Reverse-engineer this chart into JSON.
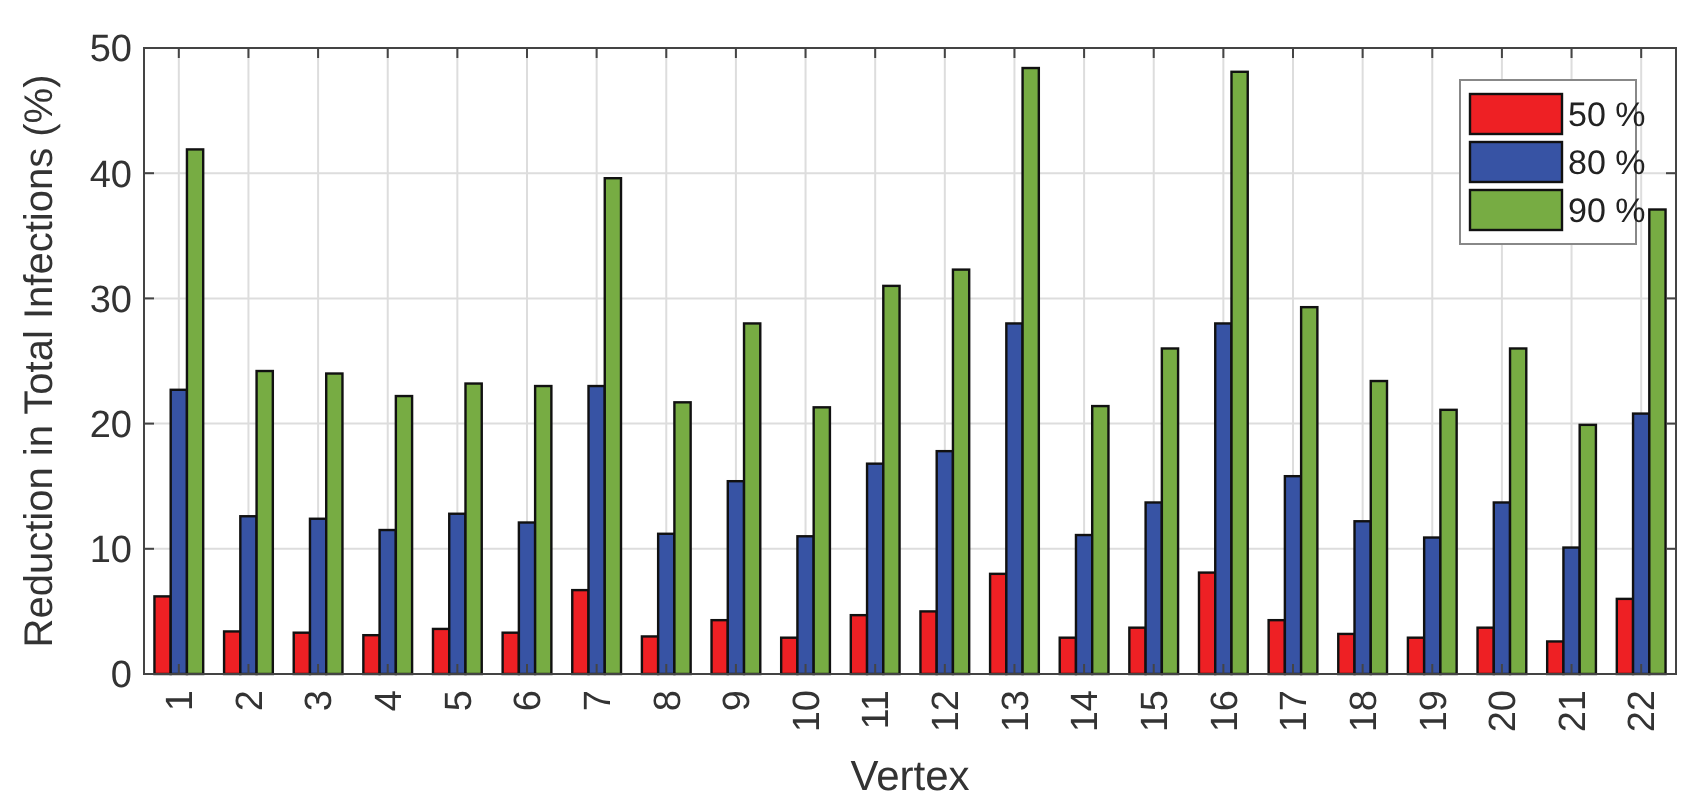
{
  "chart_data": {
    "type": "bar",
    "xlabel": "Vertex",
    "ylabel": "Reduction in Total Infections (%)",
    "categories": [
      "1",
      "2",
      "3",
      "4",
      "5",
      "6",
      "7",
      "8",
      "9",
      "10",
      "11",
      "12",
      "13",
      "14",
      "15",
      "16",
      "17",
      "18",
      "19",
      "20",
      "21",
      "22"
    ],
    "series": [
      {
        "name": "50 %",
        "color": "#ee2024",
        "values": [
          6.2,
          3.4,
          3.3,
          3.1,
          3.6,
          3.3,
          6.7,
          3.0,
          4.3,
          2.9,
          4.7,
          5.0,
          8.0,
          2.9,
          3.7,
          8.1,
          4.3,
          3.2,
          2.9,
          3.7,
          2.6,
          6.0
        ]
      },
      {
        "name": "80 %",
        "color": "#3753a4",
        "values": [
          22.7,
          12.6,
          12.4,
          11.5,
          12.8,
          12.1,
          23.0,
          11.2,
          15.4,
          11.0,
          16.8,
          17.8,
          28.0,
          11.1,
          13.7,
          28.0,
          15.8,
          12.2,
          10.9,
          13.7,
          10.1,
          20.8
        ]
      },
      {
        "name": "90 %",
        "color": "#77ac43",
        "values": [
          41.9,
          24.2,
          24.0,
          22.2,
          23.2,
          23.0,
          39.6,
          21.7,
          28.0,
          21.3,
          31.0,
          32.3,
          48.4,
          21.4,
          26.0,
          48.1,
          29.3,
          23.4,
          21.1,
          26.0,
          19.9,
          37.1
        ]
      }
    ],
    "ylim": [
      0,
      50
    ],
    "yticks": [
      0,
      10,
      20,
      30,
      40,
      50
    ],
    "grid": true,
    "legend": "top right"
  }
}
